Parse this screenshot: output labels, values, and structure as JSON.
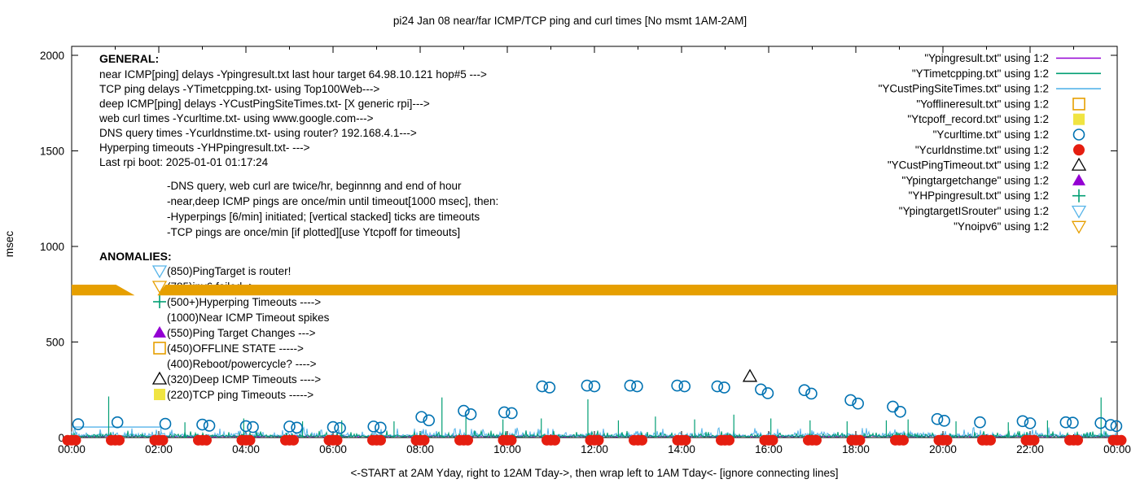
{
  "title": "pi24 Jan 08  near/far ICMP/TCP ping and curl times [No msmt 1AM-2AM]",
  "axes": {
    "ylabel": "msec",
    "xlabel": "<-START at 2AM Yday, right to 12AM Tday->, then wrap left to 1AM Tday<- [ignore connecting lines]",
    "yticks": [
      0,
      500,
      1000,
      1500,
      2000
    ],
    "xtick_labels": [
      "00:00",
      "02:00",
      "04:00",
      "06:00",
      "08:00",
      "10:00",
      "12:00",
      "14:00",
      "16:00",
      "18:00",
      "20:00",
      "22:00",
      "00:00"
    ],
    "hours_span": 24
  },
  "colors": {
    "purple": "#9400d3",
    "teal": "#009e73",
    "sky": "#56b4e9",
    "orange": "#e69f00",
    "yellow": "#f0e442",
    "blue": "#0072b2",
    "red": "#e51e10",
    "black": "#000000"
  },
  "general": {
    "heading": "GENERAL:",
    "lines": [
      "near ICMP[ping] delays -Ypingresult.txt last hour target 64.98.10.121 hop#5 --->",
      "TCP ping delays -YTimetcpping.txt- using Top100Web--->",
      "deep ICMP[ping] delays -YCustPingSiteTimes.txt- [X generic rpi]--->",
      "web curl times -Ycurltime.txt- using www.google.com--->",
      "DNS query times -Ycurldnstime.txt- using router? 192.168.4.1--->",
      "Hyperping timeouts -YHPpingresult.txt- --->",
      "Last rpi boot: 2025-01-01 01:17:24"
    ],
    "indented_lines": [
      "-DNS query, web curl are twice/hr, beginnng and end of hour",
      "-near,deep ICMP pings are once/min until timeout[1000 msec], then:",
      " -Hyperpings [6/min] initiated; [vertical stacked] ticks are timeouts",
      "-TCP pings are once/min [if plotted][use Ytcpoff for timeouts]"
    ]
  },
  "anomalies": {
    "heading": "ANOMALIES:",
    "items": [
      {
        "label": "(850)PingTarget is router!",
        "marker": "down-triangle-open",
        "color_key": "sky"
      },
      {
        "label": "(785)ipv6 failed ->",
        "marker": "down-triangle-open",
        "color_key": "orange"
      },
      {
        "label": "(500+)Hyperping Timeouts ---->",
        "marker": "plus",
        "color_key": "teal"
      },
      {
        "label": "(1000)Near ICMP Timeout spikes",
        "marker": "none",
        "color_key": "black"
      },
      {
        "label": "(550)Ping Target Changes --->",
        "marker": "triangle-filled",
        "color_key": "purple"
      },
      {
        "label": "(450)OFFLINE STATE ----->",
        "marker": "square-open",
        "color_key": "orange"
      },
      {
        "label": "(400)Reboot/powercycle? ---->",
        "marker": "none",
        "color_key": "black"
      },
      {
        "label": "(320)Deep ICMP Timeouts ---->",
        "marker": "triangle-open",
        "color_key": "black"
      },
      {
        "label": "(220)TCP ping Timeouts ----->",
        "marker": "square-filled",
        "color_key": "yellow"
      }
    ]
  },
  "legend": {
    "entries": [
      {
        "label": "\"Ypingresult.txt\" using 1:2",
        "marker": "line",
        "color_key": "purple"
      },
      {
        "label": "\"YTimetcpping.txt\" using 1:2",
        "marker": "line",
        "color_key": "teal"
      },
      {
        "label": "\"YCustPingSiteTimes.txt\" using 1:2",
        "marker": "line",
        "color_key": "sky"
      },
      {
        "label": "\"Yofflineresult.txt\" using 1:2",
        "marker": "square-open",
        "color_key": "orange"
      },
      {
        "label": "\"Ytcpoff_record.txt\" using 1:2",
        "marker": "square-filled",
        "color_key": "yellow"
      },
      {
        "label": "\"Ycurltime.txt\" using 1:2",
        "marker": "circle-open",
        "color_key": "blue"
      },
      {
        "label": "\"Ycurldnstime.txt\" using 1:2",
        "marker": "circle-filled",
        "color_key": "red"
      },
      {
        "label": "\"YCustPingTimeout.txt\" using 1:2",
        "marker": "triangle-open",
        "color_key": "black"
      },
      {
        "label": "\"Ypingtargetchange\" using 1:2",
        "marker": "triangle-filled",
        "color_key": "purple"
      },
      {
        "label": "\"YHPpingresult.txt\" using 1:2",
        "marker": "plus",
        "color_key": "teal"
      },
      {
        "label": "\"YpingtargetISrouter\" using 1:2",
        "marker": "down-triangle-open",
        "color_key": "sky"
      },
      {
        "label": "\"Ynoipv6\" using 1:2",
        "marker": "down-triangle-open",
        "color_key": "orange"
      }
    ]
  },
  "chart_data": {
    "type": "line",
    "x_axis": {
      "unit": "time-of-day",
      "start_hour": 0,
      "end_hour": 24,
      "tick_interval_hours": 2
    },
    "y_axis": {
      "label": "msec",
      "range": [
        0,
        2045
      ],
      "ticks": [
        0,
        500,
        1000,
        1500,
        2000
      ]
    },
    "series": [
      {
        "name": "Ypingresult.txt",
        "kind": "noise-line",
        "color_key": "purple",
        "description": "near ICMP ping delay",
        "baseline_msec": 7,
        "noise_msec": 3,
        "seed": 11
      },
      {
        "name": "YCustPingSiteTimes.txt",
        "kind": "noise-line",
        "color_key": "sky",
        "description": "deep ICMP ping delay",
        "baseline_msec": 10,
        "noise_msec": 42,
        "seed": 23,
        "flat_segment": {
          "hours": [
            0,
            2.05
          ],
          "msec": 55
        }
      },
      {
        "name": "YTimetcpping.txt",
        "kind": "noise-line",
        "color_key": "teal",
        "description": "TCP ping delay",
        "baseline_msec": 6,
        "noise_msec": 30,
        "seed": 47,
        "spikes": [
          [
            0.85,
            215
          ],
          [
            2.6,
            80
          ],
          [
            3.95,
            100
          ],
          [
            5.3,
            85
          ],
          [
            6.2,
            90
          ],
          [
            7.4,
            85
          ],
          [
            8.5,
            210
          ],
          [
            9.05,
            125
          ],
          [
            9.9,
            95
          ],
          [
            10.78,
            100
          ],
          [
            11.85,
            200
          ],
          [
            12.55,
            90
          ],
          [
            13.4,
            110
          ],
          [
            14.3,
            95
          ],
          [
            15.2,
            120
          ],
          [
            16.05,
            100
          ],
          [
            16.95,
            90
          ],
          [
            17.8,
            85
          ],
          [
            18.7,
            90
          ],
          [
            19.2,
            95
          ],
          [
            20.3,
            85
          ],
          [
            21.5,
            80
          ],
          [
            22.4,
            90
          ],
          [
            23.63,
            210
          ]
        ]
      },
      {
        "name": "Ycurltime.txt",
        "kind": "points",
        "marker": "circle-open",
        "color_key": "blue",
        "description": "web curl times",
        "points": [
          [
            0.15,
            70
          ],
          [
            1.05,
            80
          ],
          [
            2.15,
            72
          ],
          [
            3.0,
            68
          ],
          [
            3.16,
            62
          ],
          [
            4.0,
            60
          ],
          [
            4.16,
            55
          ],
          [
            5.0,
            58
          ],
          [
            5.17,
            52
          ],
          [
            6.0,
            55
          ],
          [
            6.16,
            50
          ],
          [
            6.93,
            58
          ],
          [
            7.09,
            52
          ],
          [
            8.03,
            108
          ],
          [
            8.2,
            90
          ],
          [
            9.0,
            140
          ],
          [
            9.16,
            122
          ],
          [
            9.93,
            132
          ],
          [
            10.1,
            128
          ],
          [
            10.8,
            268
          ],
          [
            10.97,
            262
          ],
          [
            11.83,
            272
          ],
          [
            12.0,
            268
          ],
          [
            12.82,
            272
          ],
          [
            12.98,
            268
          ],
          [
            13.9,
            272
          ],
          [
            14.07,
            268
          ],
          [
            14.82,
            268
          ],
          [
            14.98,
            262
          ],
          [
            15.82,
            252
          ],
          [
            15.98,
            232
          ],
          [
            16.82,
            248
          ],
          [
            16.98,
            230
          ],
          [
            17.88,
            196
          ],
          [
            18.05,
            178
          ],
          [
            18.85,
            162
          ],
          [
            19.02,
            135
          ],
          [
            19.87,
            97
          ],
          [
            20.03,
            88
          ],
          [
            20.85,
            80
          ],
          [
            21.83,
            86
          ],
          [
            22.0,
            75
          ],
          [
            22.82,
            80
          ],
          [
            22.98,
            78
          ],
          [
            23.62,
            76
          ],
          [
            23.85,
            66
          ],
          [
            23.98,
            60
          ]
        ]
      },
      {
        "name": "Ycurldnstime.txt",
        "kind": "hourly-blobs",
        "marker": "circle-filled",
        "color_key": "red",
        "description": "DNS query times",
        "from_hour": 0,
        "to_hour": 24,
        "msec": 3
      },
      {
        "name": "YCustPingTimeout.txt",
        "kind": "points",
        "marker": "triangle-open",
        "color_key": "black",
        "description": "deep ICMP timeout",
        "points": [
          [
            15.57,
            320
          ]
        ]
      },
      {
        "name": "Ynoipv6",
        "kind": "band",
        "color_key": "orange",
        "description": "no-ipv6 marker band of stacked down-triangles",
        "band_msec": [
          744,
          800
        ],
        "segments_hours": [
          [
            0,
            1.2
          ],
          [
            1.97,
            24
          ]
        ]
      }
    ]
  }
}
